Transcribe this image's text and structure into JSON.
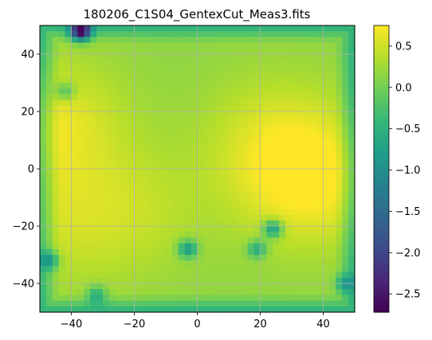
{
  "chart_data": {
    "type": "heatmap",
    "title": "180206_C1S04_GentexCut_Meas3.fits",
    "xlabel": "",
    "ylabel": "",
    "xlim": [
      -50,
      50
    ],
    "ylim": [
      -50,
      50
    ],
    "x_ticks": [
      -40,
      -20,
      0,
      20,
      40
    ],
    "y_ticks": [
      -40,
      -20,
      0,
      20,
      40
    ],
    "x_tick_labels": [
      "−40",
      "−20",
      "0",
      "20",
      "40"
    ],
    "y_tick_labels": [
      "−40",
      "−20",
      "0",
      "20",
      "40"
    ],
    "grid": true,
    "colormap": "viridis",
    "colorbar": {
      "vmin": -2.72,
      "vmax": 0.75,
      "ticks": [
        0.5,
        0.0,
        -0.5,
        -1.0,
        -1.5,
        -2.0,
        -2.5
      ],
      "tick_labels": [
        "0.5",
        "0.0",
        "−0.5",
        "−1.0",
        "−1.5",
        "−2.0",
        "−2.5"
      ]
    },
    "surface": {
      "background": 0.15,
      "bright_regions": [
        {
          "x": -46,
          "y": 15,
          "value": 0.65
        },
        {
          "x": 36,
          "y": -5,
          "value": 0.72
        },
        {
          "x": 25,
          "y": 10,
          "value": 0.5
        },
        {
          "x": -20,
          "y": -15,
          "value": 0.4
        },
        {
          "x": -44,
          "y": -20,
          "value": 0.4
        }
      ],
      "dark_spots": [
        {
          "x": -47,
          "y": -32,
          "value": -0.8
        },
        {
          "x": -32,
          "y": -44,
          "value": -0.6
        },
        {
          "x": 24,
          "y": -21,
          "value": -1.0
        },
        {
          "x": -3,
          "y": -28,
          "value": -0.9
        },
        {
          "x": 19,
          "y": -28,
          "value": -0.7
        },
        {
          "x": -42,
          "y": 27,
          "value": -0.5
        },
        {
          "x": 47,
          "y": -40,
          "value": -0.6
        },
        {
          "x": -37,
          "y": 48,
          "value": -2.6
        }
      ]
    }
  }
}
